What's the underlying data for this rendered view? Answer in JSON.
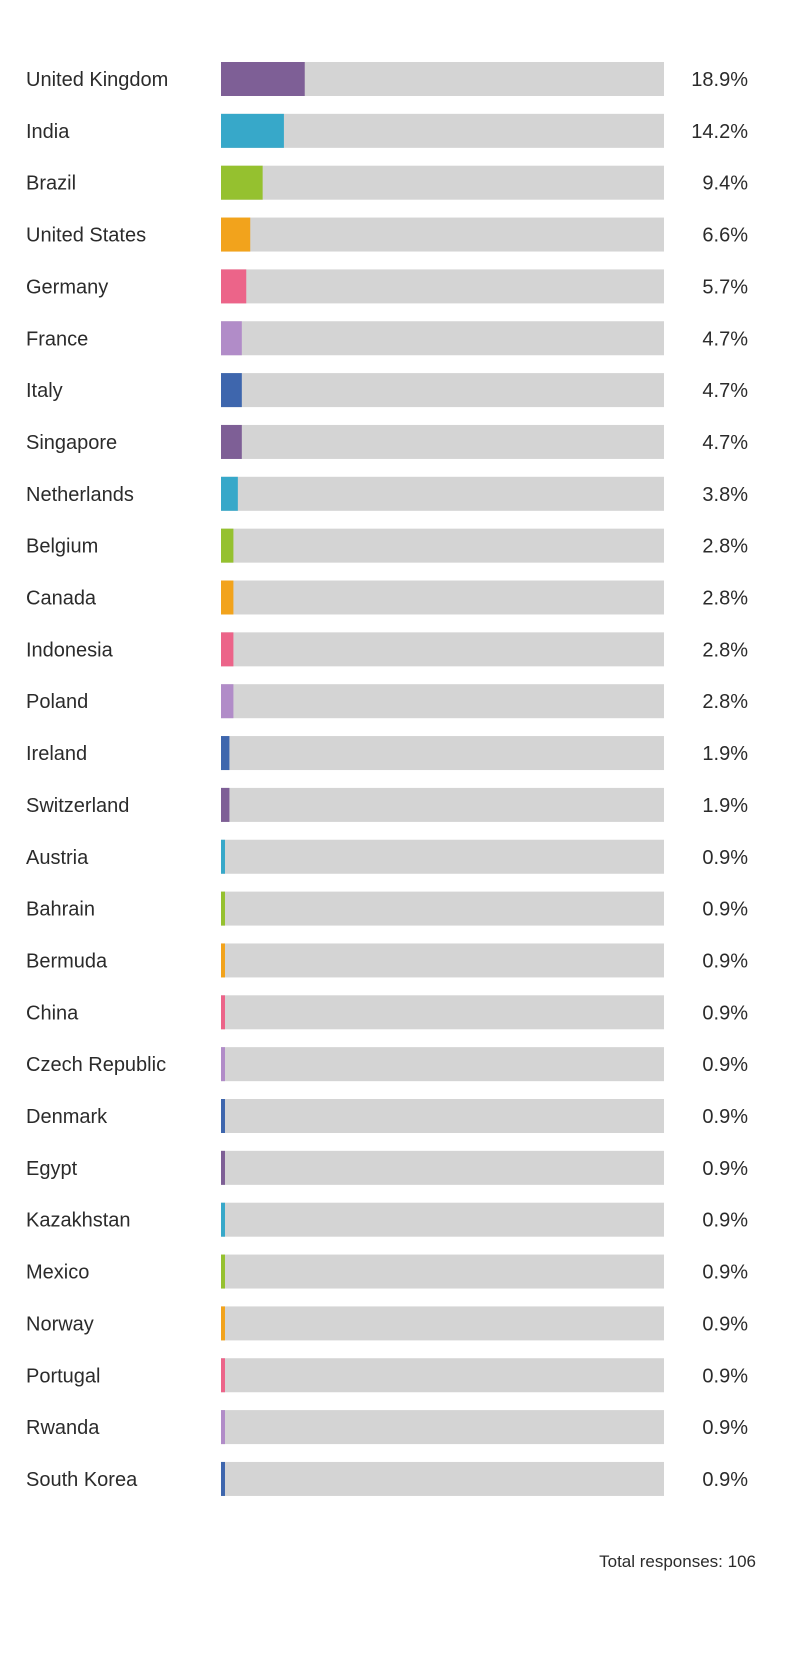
{
  "chart_data": {
    "type": "bar",
    "orientation": "horizontal",
    "xlim": [
      0,
      100
    ],
    "track_color": "#d4d4d4",
    "palette": [
      "#7e5f96",
      "#37a8c9",
      "#95c12f",
      "#f2a31c",
      "#ec6489",
      "#b18cc8",
      "#3e66ad"
    ],
    "categories": [
      "United Kingdom",
      "India",
      "Brazil",
      "United States",
      "Germany",
      "France",
      "Italy",
      "Singapore",
      "Netherlands",
      "Belgium",
      "Canada",
      "Indonesia",
      "Poland",
      "Ireland",
      "Switzerland",
      "Austria",
      "Bahrain",
      "Bermuda",
      "China",
      "Czech Republic",
      "Denmark",
      "Egypt",
      "Kazakhstan",
      "Mexico",
      "Norway",
      "Portugal",
      "Rwanda",
      "South Korea"
    ],
    "values": [
      18.9,
      14.2,
      9.4,
      6.6,
      5.7,
      4.7,
      4.7,
      4.7,
      3.8,
      2.8,
      2.8,
      2.8,
      2.8,
      1.9,
      1.9,
      0.9,
      0.9,
      0.9,
      0.9,
      0.9,
      0.9,
      0.9,
      0.9,
      0.9,
      0.9,
      0.9,
      0.9,
      0.9
    ],
    "value_labels": [
      "18.9%",
      "14.2%",
      "9.4%",
      "6.6%",
      "5.7%",
      "4.7%",
      "4.7%",
      "4.7%",
      "3.8%",
      "2.8%",
      "2.8%",
      "2.8%",
      "2.8%",
      "1.9%",
      "1.9%",
      "0.9%",
      "0.9%",
      "0.9%",
      "0.9%",
      "0.9%",
      "0.9%",
      "0.9%",
      "0.9%",
      "0.9%",
      "0.9%",
      "0.9%",
      "0.9%",
      "0.9%"
    ]
  },
  "footer": {
    "total_label": "Total responses: 106"
  }
}
